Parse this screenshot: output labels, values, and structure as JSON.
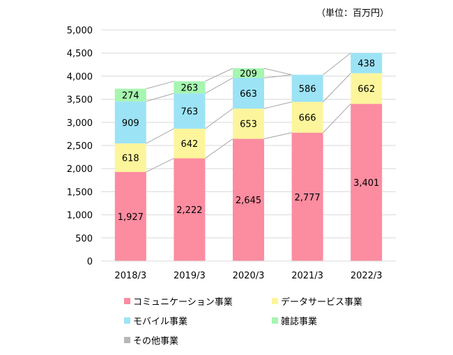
{
  "unit_label": "（単位：百万円）",
  "chart_data": {
    "type": "bar",
    "stacked": true,
    "categories": [
      "2018/3",
      "2019/3",
      "2020/3",
      "2021/3",
      "2022/3"
    ],
    "series": [
      {
        "name": "コミュニケーション事業",
        "values": [
          1927,
          2222,
          2645,
          2777,
          3401
        ],
        "color": "#fc8ca0"
      },
      {
        "name": "データサービス事業",
        "values": [
          618,
          642,
          653,
          666,
          662
        ],
        "color": "#fdf59c"
      },
      {
        "name": "モバイル事業",
        "values": [
          909,
          763,
          663,
          586,
          438
        ],
        "color": "#9ce3f6"
      },
      {
        "name": "雑誌事業",
        "values": [
          274,
          263,
          209,
          null,
          null
        ],
        "color": "#a6f5b0"
      },
      {
        "name": "その他事業",
        "values": [
          null,
          null,
          null,
          null,
          null
        ],
        "color": "#b8b8b8"
      }
    ],
    "data_labels": [
      [
        "1,927",
        "2,222",
        "2,645",
        "2,777",
        "3,401"
      ],
      [
        "618",
        "642",
        "653",
        "666",
        "662"
      ],
      [
        "909",
        "763",
        "663",
        "586",
        "438"
      ],
      [
        "274",
        "263",
        "209",
        "",
        ""
      ],
      [
        "",
        "",
        "",
        "",
        ""
      ]
    ],
    "yticks": [
      0,
      500,
      1000,
      1500,
      2000,
      2500,
      3000,
      3500,
      4000,
      4500,
      5000
    ],
    "ytick_labels": [
      "0",
      "500",
      "1,000",
      "1,500",
      "2,000",
      "2,500",
      "3,000",
      "3,500",
      "4,000",
      "4,500",
      "5,000"
    ],
    "ylim": [
      0,
      5000
    ],
    "grid": true,
    "series_lines": true,
    "legend_position": "bottom"
  }
}
